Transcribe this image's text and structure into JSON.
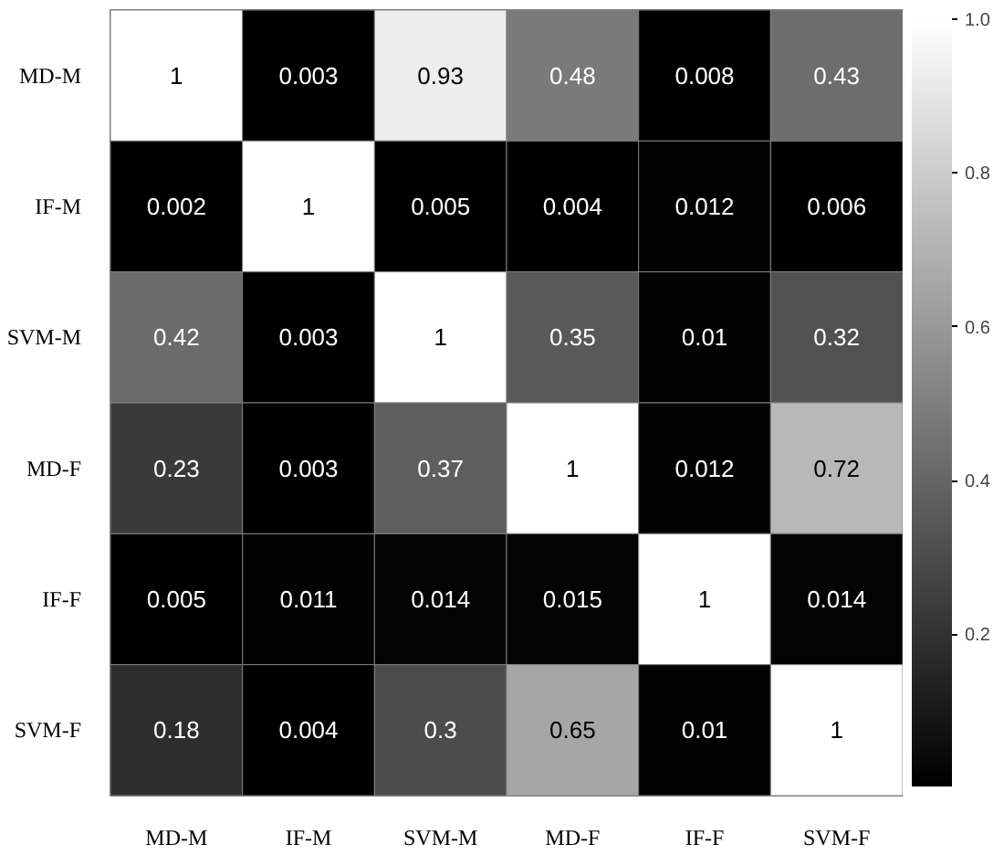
{
  "chart_data": {
    "type": "heatmap",
    "categories": [
      "MD-M",
      "IF-M",
      "SVM-M",
      "MD-F",
      "IF-F",
      "SVM-F"
    ],
    "y_categories": [
      "MD-M",
      "IF-M",
      "SVM-M",
      "MD-F",
      "IF-F",
      "SVM-F"
    ],
    "cells": [
      [
        1,
        0.003,
        0.93,
        0.48,
        0.008,
        0.43
      ],
      [
        0.002,
        1,
        0.005,
        0.004,
        0.012,
        0.006
      ],
      [
        0.42,
        0.003,
        1,
        0.35,
        0.01,
        0.32
      ],
      [
        0.23,
        0.003,
        0.37,
        1,
        0.012,
        0.72
      ],
      [
        0.005,
        0.011,
        0.014,
        0.015,
        1,
        0.014
      ],
      [
        0.18,
        0.004,
        0.3,
        0.65,
        0.01,
        1
      ]
    ],
    "clim": [
      0.002,
      1
    ],
    "cticks": [
      {
        "value": 0.2,
        "label": "0.2"
      },
      {
        "value": 0.4,
        "label": "0.4"
      },
      {
        "value": 0.6,
        "label": "0.6"
      },
      {
        "value": 0.8,
        "label": "0.8"
      },
      {
        "value": 1,
        "label": "1.0"
      }
    ],
    "data_labels": true
  }
}
